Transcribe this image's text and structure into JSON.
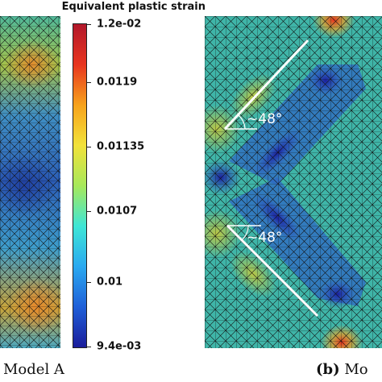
{
  "colorbar": {
    "title": "Equivalent plastic strain",
    "labels": [
      "1.2e-02",
      "0.0119",
      "0.01135",
      "0.0107",
      "0.01",
      "9.4e-03"
    ],
    "colors": [
      "#b2182b",
      "#e8351f",
      "#f7a21b",
      "#f2e23a",
      "#a7e85a",
      "#3ee6d6",
      "#2aa9f0",
      "#1f5fd8",
      "#1a1c9a"
    ]
  },
  "panel_a": {
    "caption": "Model A"
  },
  "panel_b": {
    "caption_label": "(b)",
    "caption_text": "Mo",
    "angle_top": "48°",
    "angle_bottom": "48°"
  }
}
